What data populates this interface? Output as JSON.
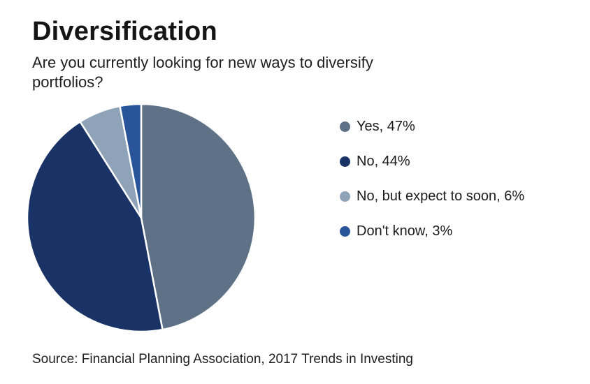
{
  "page": {
    "title": "Diversification",
    "subtitle": "Are you currently looking for new ways to diversify portfolios?",
    "source": "Source: Financial Planning Association, 2017 Trends in Investing"
  },
  "chart_data": {
    "type": "pie",
    "title": "Diversification",
    "question": "Are you currently looking for new ways to diversify portfolios?",
    "start_angle_deg": 0,
    "direction": "clockwise",
    "legend_position": "right",
    "slice_border_color": "#ffffff",
    "items": [
      {
        "label": "Yes",
        "value": 47,
        "display": "Yes, 47%",
        "color": "#5f7187"
      },
      {
        "label": "No",
        "value": 44,
        "display": "No, 44%",
        "color": "#1a3366"
      },
      {
        "label": "No, but expect to soon",
        "value": 6,
        "display": "No, but expect to soon, 6%",
        "color": "#8fa3b8"
      },
      {
        "label": "Don't know",
        "value": 3,
        "display": "Don't know, 3%",
        "color": "#2a5499"
      }
    ],
    "source": "Source: Financial Planning Association, 2017 Trends in Investing"
  }
}
